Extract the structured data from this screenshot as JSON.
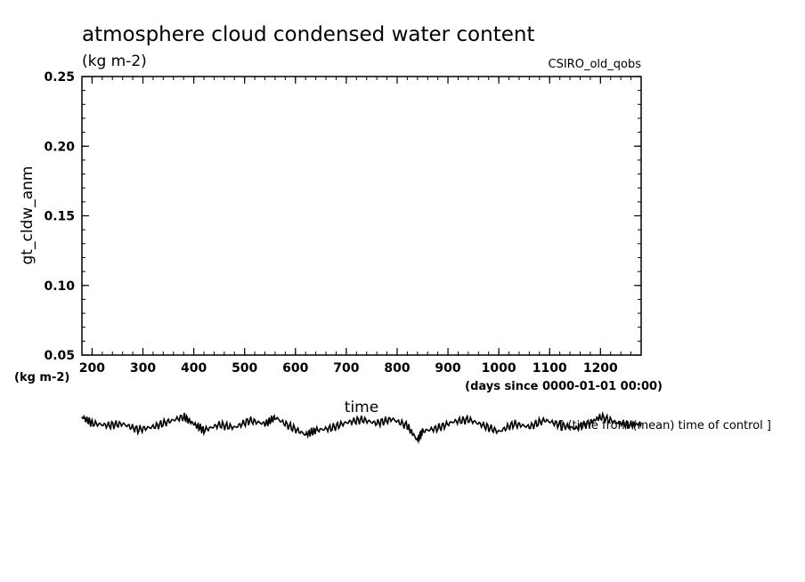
{
  "chart_data": {
    "type": "line",
    "title": "atmosphere cloud condensed water content",
    "units_top": "(kg m-2)",
    "model": "CSIRO_old_qobs",
    "ylabel": "gt_cldw_anm",
    "yunits": "(kg m-2)",
    "xlabel": "time",
    "xunits": "(days since 0000-01-01 00:00)",
    "note": "[ (time from (mean) time of control ]",
    "xlim": [
      180,
      1280
    ],
    "ylim": [
      0.05,
      0.25
    ],
    "xticks": [
      200,
      300,
      400,
      500,
      600,
      700,
      800,
      900,
      1000,
      1100,
      1200
    ],
    "xtick_labels": [
      "200",
      "300",
      "400",
      "500",
      "600",
      "700",
      "800",
      "900",
      "1000",
      "1100",
      "1200"
    ],
    "yticks": [
      0.05,
      0.1,
      0.15,
      0.2,
      0.25
    ],
    "ytick_labels": [
      "0.05",
      "0.10",
      "0.15",
      "0.20",
      "0.25"
    ],
    "series": [
      {
        "name": "gt_cldw_anm",
        "x": [
          180,
          200,
          230,
          260,
          290,
          320,
          350,
          380,
          400,
          420,
          450,
          480,
          510,
          540,
          560,
          590,
          620,
          640,
          670,
          700,
          730,
          760,
          790,
          820,
          840,
          850,
          880,
          910,
          940,
          970,
          1000,
          1030,
          1060,
          1090,
          1120,
          1150,
          1180,
          1200,
          1230,
          1260,
          1280
        ],
        "y": [
          -0.0035,
          -0.0065,
          -0.0075,
          -0.0068,
          -0.0095,
          -0.0082,
          -0.0058,
          -0.0035,
          -0.0068,
          -0.0098,
          -0.0072,
          -0.0085,
          -0.0052,
          -0.0068,
          -0.0038,
          -0.0082,
          -0.0118,
          -0.0098,
          -0.0088,
          -0.0062,
          -0.0048,
          -0.0065,
          -0.0045,
          -0.0078,
          -0.0145,
          -0.0102,
          -0.0088,
          -0.0058,
          -0.0048,
          -0.0075,
          -0.0105,
          -0.0068,
          -0.0082,
          -0.005,
          -0.0072,
          -0.009,
          -0.0062,
          -0.0035,
          -0.006,
          -0.0072,
          -0.0068
        ]
      }
    ]
  }
}
